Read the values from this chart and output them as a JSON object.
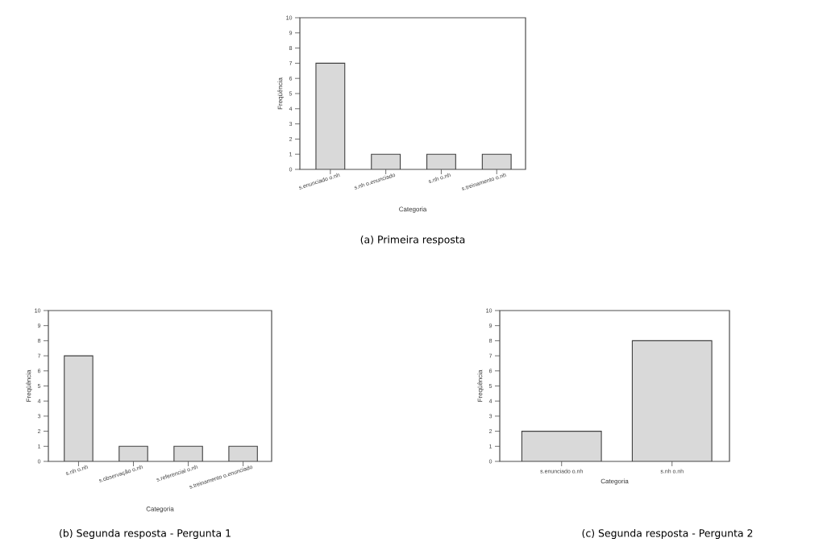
{
  "chart_data": [
    {
      "type": "bar",
      "title": "(a) Primeira resposta",
      "xlabel": "Categoria",
      "ylabel": "Freqüência",
      "categories": [
        "s.enunciado o.nh",
        "s.nh o.enunciado",
        "s.nh o.nh",
        "s.treinamento o.nh"
      ],
      "values": [
        7,
        1,
        1,
        1
      ],
      "color": "#d9d9d9",
      "ylim": [
        0,
        10
      ],
      "yticks": [
        0,
        1,
        2,
        3,
        4,
        5,
        6,
        7,
        8,
        9,
        10
      ]
    },
    {
      "type": "bar",
      "title": "(b) Segunda resposta - Pergunta 1",
      "xlabel": "Categoria",
      "ylabel": "Freqüência",
      "categories": [
        "s.nh o.nh",
        "s.observação o.nh",
        "s.referencial o.nh",
        "s.treinamento o.enunciado"
      ],
      "values": [
        7,
        1,
        1,
        1
      ],
      "color": "#d9d9d9",
      "ylim": [
        0,
        10
      ],
      "yticks": [
        0,
        1,
        2,
        3,
        4,
        5,
        6,
        7,
        8,
        9,
        10
      ]
    },
    {
      "type": "bar",
      "title": "(c) Segunda resposta - Pergunta 2",
      "xlabel": "Categoria",
      "ylabel": "Freqüência",
      "categories": [
        "s.enunciado o.nh",
        "s.nh o.nh"
      ],
      "values": [
        2,
        8
      ],
      "color": "#d9d9d9",
      "ylim": [
        0,
        10
      ],
      "yticks": [
        0,
        1,
        2,
        3,
        4,
        5,
        6,
        7,
        8,
        9,
        10
      ]
    }
  ]
}
